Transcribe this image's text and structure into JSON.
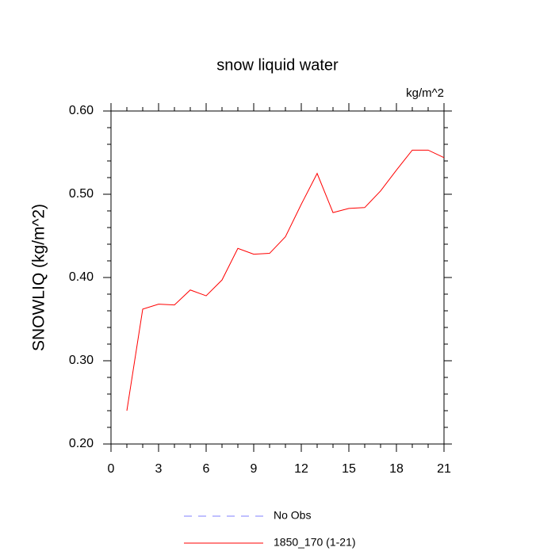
{
  "chart_data": {
    "type": "line",
    "title": "snow liquid water",
    "units": "kg/m^2",
    "y_label": "SNOWLIQ  (kg/m^2)",
    "x": [
      1,
      2,
      3,
      4,
      5,
      6,
      7,
      8,
      9,
      10,
      11,
      12,
      13,
      14,
      15,
      16,
      17,
      18,
      19,
      20,
      21
    ],
    "series": [
      {
        "name": "No Obs",
        "color": "#8080ff",
        "dashed": true,
        "values": [
          null,
          null,
          null,
          null,
          null,
          null,
          null,
          null,
          null,
          null,
          null,
          null,
          null,
          null,
          null,
          null,
          null,
          null,
          null,
          null,
          null
        ]
      },
      {
        "name": "1850_170 (1-21)",
        "color": "#ff0000",
        "dashed": false,
        "values": [
          0.24,
          0.362,
          0.368,
          0.367,
          0.385,
          0.378,
          0.397,
          0.435,
          0.428,
          0.429,
          0.449,
          0.488,
          0.525,
          0.478,
          0.483,
          0.484,
          0.504,
          0.529,
          0.553,
          0.553,
          0.544
        ]
      }
    ],
    "xlim": [
      0,
      21
    ],
    "xticks": [
      0,
      3,
      6,
      9,
      12,
      15,
      18,
      21
    ],
    "ylim": [
      0.2,
      0.6
    ],
    "yticks": [
      {
        "value": 0.2,
        "label": "0.20"
      },
      {
        "value": 0.3,
        "label": "0.30"
      },
      {
        "value": 0.4,
        "label": "0.40"
      },
      {
        "value": 0.5,
        "label": "0.50"
      },
      {
        "value": 0.6,
        "label": "0.60"
      }
    ]
  }
}
